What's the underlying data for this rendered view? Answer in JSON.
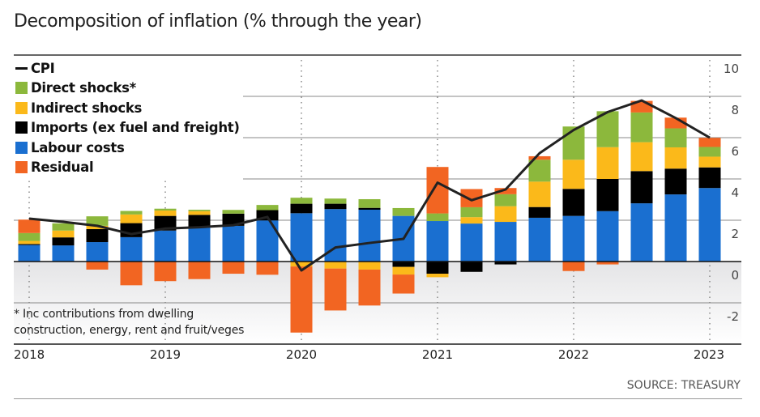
{
  "title": "Decomposition of inflation (% through the year)",
  "source": "SOURCE: TREASURY",
  "footnote": [
    "* Inc contributions from dwelling",
    "construction, energy, rent and fruit/veges"
  ],
  "chart_data": {
    "type": "bar",
    "stacked": true,
    "title": "Decomposition of inflation (% through the year)",
    "xlabel": "",
    "ylabel": "",
    "ylim": [
      -4,
      10
    ],
    "yticks": [
      10,
      8,
      6,
      4,
      2,
      0,
      -2
    ],
    "y_axis_side": "right",
    "xtick_labels": [
      "2018",
      "2019",
      "2020",
      "2021",
      "2022",
      "2023"
    ],
    "grid": true,
    "legend_position": "top-left",
    "periods": [
      "2018 Q1",
      "2018 Q2",
      "2018 Q3",
      "2018 Q4",
      "2019 Q1",
      "2019 Q2",
      "2019 Q3",
      "2019 Q4",
      "2020 Q1",
      "2020 Q2",
      "2020 Q3",
      "2020 Q4",
      "2021 Q1",
      "2021 Q2",
      "2021 Q3",
      "2021 Q4",
      "2022 Q1",
      "2022 Q2",
      "2022 Q3",
      "2022 Q4",
      "2023 Q1"
    ],
    "series": [
      {
        "name": "Labour costs",
        "color": "#1a6fd0",
        "values": [
          0.8,
          0.78,
          0.94,
          1.18,
          1.5,
          1.66,
          1.73,
          1.99,
          2.34,
          2.54,
          2.51,
          2.21,
          1.96,
          1.84,
          1.92,
          2.12,
          2.21,
          2.44,
          2.82,
          3.25,
          3.56
        ]
      },
      {
        "name": "Imports (ex fuel and freight)",
        "color": "#000000",
        "values": [
          0.05,
          0.39,
          0.63,
          0.68,
          0.71,
          0.6,
          0.59,
          0.5,
          0.46,
          0.26,
          0.09,
          -0.26,
          -0.59,
          -0.5,
          -0.14,
          0.52,
          1.31,
          1.56,
          1.56,
          1.25,
          1.0
        ]
      },
      {
        "name": "Indirect shocks",
        "color": "#fbb91a",
        "values": [
          0.15,
          0.33,
          0.16,
          0.42,
          0.26,
          0.18,
          0.0,
          0.0,
          -0.24,
          -0.34,
          -0.39,
          -0.37,
          -0.17,
          0.31,
          0.76,
          1.23,
          1.41,
          1.54,
          1.4,
          1.03,
          0.52
        ]
      },
      {
        "name": "Direct shocks*",
        "color": "#8cb83c",
        "values": [
          0.38,
          0.35,
          0.46,
          0.17,
          0.09,
          0.07,
          0.18,
          0.25,
          0.29,
          0.25,
          0.42,
          0.38,
          0.37,
          0.48,
          0.58,
          1.06,
          1.61,
          1.74,
          1.44,
          0.92,
          0.47
        ]
      },
      {
        "name": "Residual",
        "color": "#f26522",
        "values": [
          0.65,
          0.0,
          -0.39,
          -1.15,
          -0.95,
          -0.85,
          -0.59,
          -0.64,
          -3.2,
          -2.03,
          -1.74,
          -0.92,
          2.25,
          0.88,
          0.3,
          0.17,
          -0.46,
          -0.14,
          0.56,
          0.52,
          0.44
        ]
      }
    ],
    "line": {
      "name": "CPI",
      "color": "#222222",
      "values": [
        2.08,
        1.92,
        1.73,
        1.33,
        1.6,
        1.66,
        1.76,
        2.16,
        -0.43,
        0.68,
        0.9,
        1.1,
        3.82,
        2.97,
        3.49,
        5.25,
        6.37,
        7.24,
        7.8,
        6.95,
        6.0
      ]
    }
  }
}
